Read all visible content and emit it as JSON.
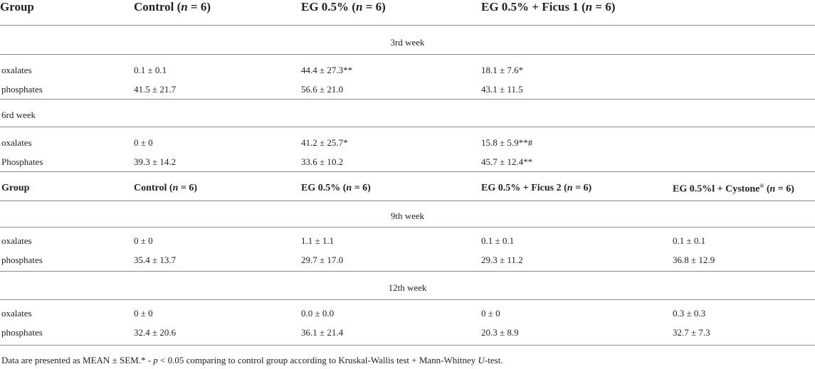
{
  "table1": {
    "headers": [
      {
        "pre": "Group",
        "n": "",
        "post": ""
      },
      {
        "pre": "Control (",
        "n": "n",
        "post": " = 6)"
      },
      {
        "pre": "EG 0.5% (",
        "n": "n",
        "post": " = 6)"
      },
      {
        "pre": "EG 0.5% + Ficus 1 (",
        "n": "n",
        "post": " = 6)"
      }
    ],
    "sections": [
      {
        "label": "3rd week",
        "rows": [
          [
            "oxalates",
            "0.1 ± 0.1",
            "44.4 ± 27.3**",
            "18.1 ± 7.6*"
          ],
          [
            "phosphates",
            "41.5 ± 21.7",
            "56.6 ± 21.0",
            "43.1 ± 11.5"
          ]
        ]
      },
      {
        "label": "6rd week",
        "rows": [
          [
            "oxalates",
            "0 ± 0",
            "41.2 ± 25.7*",
            "15.8 ± 5.9**#"
          ],
          [
            "Phosphates",
            "39.3 ± 14.2",
            "33.6 ± 10.2",
            "45.7 ± 12.4**"
          ]
        ]
      }
    ]
  },
  "table2": {
    "headers": [
      {
        "pre": "Group",
        "n": "",
        "post": ""
      },
      {
        "pre": "Control (",
        "n": "n",
        "post": " = 6)"
      },
      {
        "pre": "EG 0.5% (",
        "n": "n",
        "post": " = 6)"
      },
      {
        "pre": "EG 0.5% + Ficus 2 (",
        "n": "n",
        "post": " = 6)"
      },
      {
        "pre": "EG 0.5%l + Cystone",
        "sup": "®",
        "mid": " (",
        "n": "n",
        "post": " = 6)"
      }
    ],
    "sections": [
      {
        "label": "9th week",
        "rows": [
          [
            "oxalates",
            "0 ± 0",
            "1.1 ± 1.1",
            "0.1 ± 0.1",
            "0.1 ± 0.1"
          ],
          [
            "phosphates",
            "35.4 ± 13.7",
            "29.7 ± 17.0",
            "29.3 ± 11.2",
            "36.8 ± 12.9"
          ]
        ]
      },
      {
        "label": "12th week",
        "rows": [
          [
            "oxalates",
            "0 ± 0",
            "0.0 ± 0.0",
            "0 ± 0",
            "0.3 ± 0.3"
          ],
          [
            "phosphates",
            "32.4 ± 20.6",
            "36.1 ± 21.4",
            "20.3 ± 8.9",
            "32.7 ± 7.3"
          ]
        ]
      }
    ]
  },
  "footnote": {
    "part1": "Data are presented as MEAN ± SEM.* - ",
    "p": "p",
    "part2": " < 0.05 comparing to control group according to Kruskal-Wallis test + Mann-Whitney ",
    "u": "U",
    "part3": "-test."
  }
}
